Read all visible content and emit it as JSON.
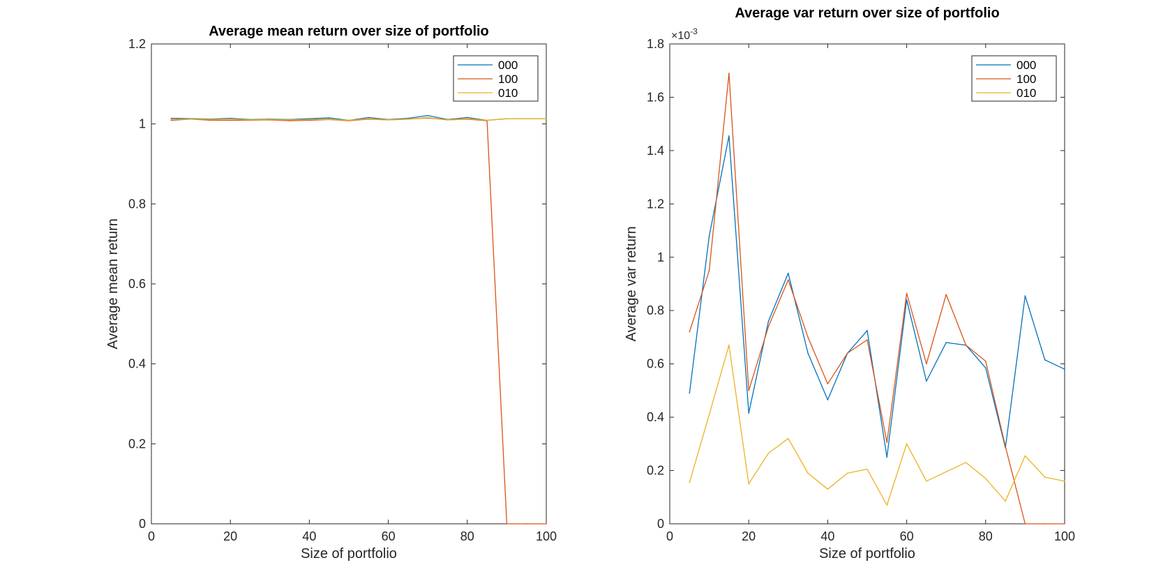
{
  "colors": {
    "series_000": "#0072BD",
    "series_100": "#D95319",
    "series_010": "#EDB120",
    "axis": "#262626"
  },
  "chart_data": [
    {
      "type": "line",
      "title": "Average mean return over size of portfolio",
      "xlabel": "Size of portfolio",
      "ylabel": "Average mean return",
      "xlim": [
        0,
        100
      ],
      "ylim": [
        0,
        1.2
      ],
      "xticks": [
        0,
        20,
        40,
        60,
        80,
        100
      ],
      "yticks": [
        0,
        0.2,
        0.4,
        0.6,
        0.8,
        1,
        1.2
      ],
      "xtick_labels": [
        "0",
        "20",
        "40",
        "60",
        "80",
        "100"
      ],
      "ytick_labels": [
        "0",
        "0.2",
        "0.4",
        "0.6",
        "0.8",
        "1",
        "1.2"
      ],
      "exponent_label": "",
      "legend_position": "top-right",
      "grid": false,
      "x": [
        5,
        10,
        15,
        20,
        25,
        30,
        35,
        40,
        45,
        50,
        55,
        60,
        65,
        70,
        75,
        80,
        85,
        90,
        95,
        100
      ],
      "series": [
        {
          "name": "000",
          "values": [
            1.014,
            1.013,
            1.012,
            1.014,
            1.011,
            1.012,
            1.011,
            1.013,
            1.015,
            1.009,
            1.016,
            1.011,
            1.014,
            1.021,
            1.011,
            1.016,
            1.009,
            1.013,
            1.013,
            1.013
          ]
        },
        {
          "name": "100",
          "values": [
            1.009,
            1.012,
            1.009,
            1.009,
            1.009,
            1.01,
            1.008,
            1.009,
            1.011,
            1.008,
            1.012,
            1.01,
            1.012,
            1.015,
            1.01,
            1.012,
            1.008,
            0,
            0,
            0
          ]
        },
        {
          "name": "010",
          "values": [
            1.011,
            1.012,
            1.011,
            1.012,
            1.01,
            1.011,
            1.01,
            1.011,
            1.012,
            1.009,
            1.013,
            1.01,
            1.012,
            1.016,
            1.01,
            1.013,
            1.009,
            1.013,
            1.013,
            1.013
          ]
        }
      ]
    },
    {
      "type": "line",
      "title": "Average var return over size of portfolio",
      "xlabel": "Size of portfolio",
      "ylabel": "Average var return",
      "xlim": [
        0,
        100
      ],
      "ylim": [
        0,
        1.8
      ],
      "y_multiplier": "×10^-3",
      "xticks": [
        0,
        20,
        40,
        60,
        80,
        100
      ],
      "yticks": [
        0,
        0.2,
        0.4,
        0.6,
        0.8,
        1,
        1.2,
        1.4,
        1.6,
        1.8
      ],
      "xtick_labels": [
        "0",
        "20",
        "40",
        "60",
        "80",
        "100"
      ],
      "ytick_labels": [
        "0",
        "0.2",
        "0.4",
        "0.6",
        "0.8",
        "1",
        "1.2",
        "1.4",
        "1.6",
        "1.8"
      ],
      "exponent_label": "×10",
      "exponent_power": "-3",
      "legend_position": "top-right",
      "grid": false,
      "x": [
        5,
        10,
        15,
        20,
        25,
        30,
        35,
        40,
        45,
        50,
        55,
        60,
        65,
        70,
        75,
        80,
        85,
        90,
        95,
        100
      ],
      "series": [
        {
          "name": "000",
          "values": [
            0.49,
            1.08,
            1.455,
            0.415,
            0.76,
            0.94,
            0.64,
            0.465,
            0.64,
            0.725,
            0.25,
            0.84,
            0.535,
            0.68,
            0.67,
            0.585,
            0.285,
            0.855,
            0.615,
            0.58
          ]
        },
        {
          "name": "100",
          "values": [
            0.72,
            0.95,
            1.69,
            0.5,
            0.74,
            0.915,
            0.7,
            0.525,
            0.64,
            0.69,
            0.305,
            0.865,
            0.6,
            0.86,
            0.67,
            0.61,
            0.29,
            0,
            0,
            0
          ]
        },
        {
          "name": "010",
          "values": [
            0.155,
            0.41,
            0.67,
            0.15,
            0.265,
            0.32,
            0.19,
            0.13,
            0.19,
            0.205,
            0.07,
            0.3,
            0.16,
            0.195,
            0.23,
            0.17,
            0.085,
            0.255,
            0.175,
            0.16
          ]
        }
      ]
    }
  ]
}
